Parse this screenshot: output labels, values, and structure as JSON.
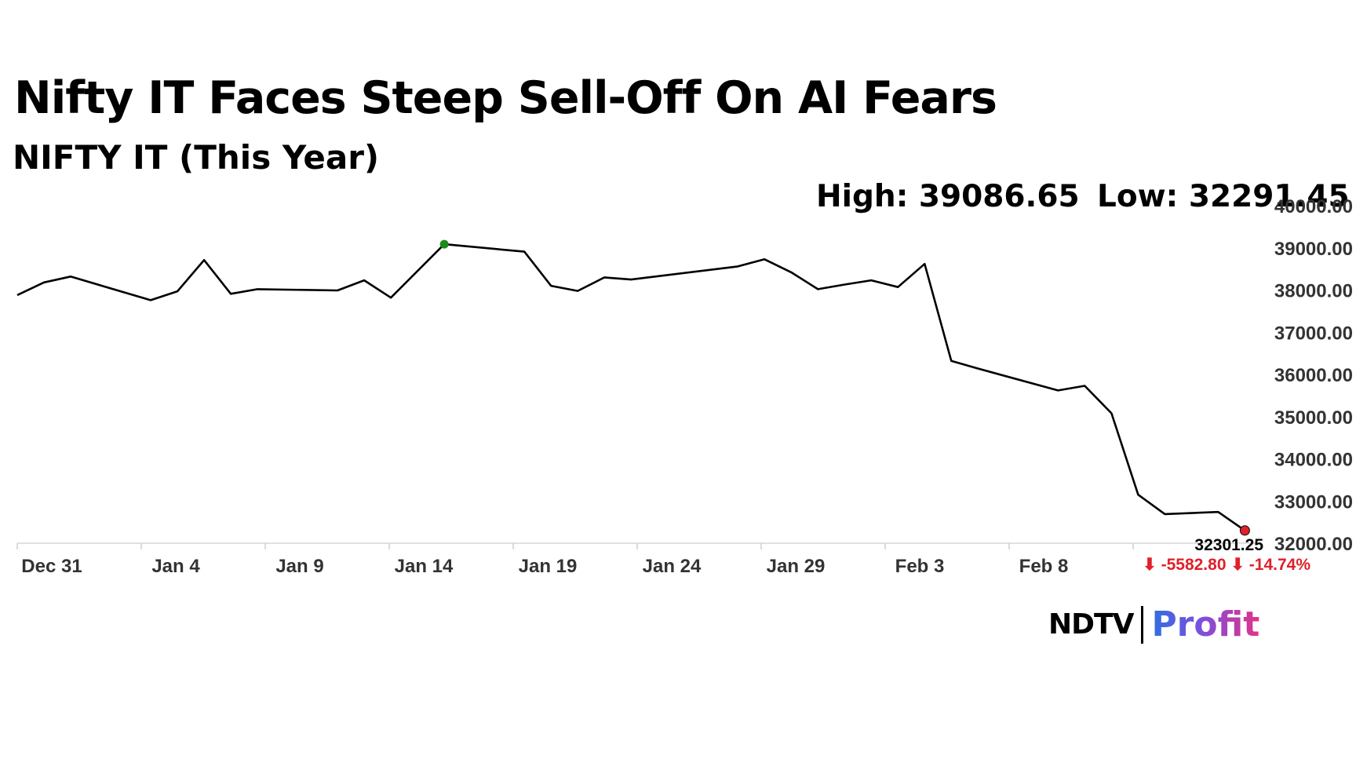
{
  "chart_data": {
    "type": "line",
    "title": "Nifty IT Faces Steep Sell-Off On AI Fears",
    "subtitle": "NIFTY IT (This Year)",
    "high_label": "High: 39086.65",
    "low_label": "Low: 32291.45",
    "ylim": [
      32000,
      40000
    ],
    "y_ticks": [
      "40000.00",
      "39000.00",
      "38000.00",
      "37000.00",
      "36000.00",
      "35000.00",
      "34000.00",
      "33000.00",
      "32000.00"
    ],
    "x_ticks": [
      "Dec 31",
      "Jan 4",
      "Jan 9",
      "Jan 14",
      "Jan 19",
      "Jan 24",
      "Jan 29",
      "Feb 3",
      "Feb 8"
    ],
    "x_tick_days": [
      0,
      5,
      10,
      15,
      20,
      25,
      30,
      35,
      40
    ],
    "x_range": [
      -1.4,
      45
    ],
    "grid": false,
    "series": [
      {
        "name": "NIFTY IT",
        "color": "#000000",
        "x": [
          -1.4,
          -0.4,
          0.6,
          3.6,
          4.6,
          5.6,
          6.6,
          7.6,
          10.6,
          11.6,
          12.6,
          14.6,
          17.6,
          18.6,
          19.6,
          20.6,
          21.6,
          25.6,
          26.6,
          27.6,
          28.6,
          29.6,
          30.6,
          31.6,
          32.6,
          33.6,
          34.6,
          37.6,
          38.6,
          39.6,
          40.6,
          41.6,
          43.6,
          44.6
        ],
        "values": [
          37880,
          38180,
          38320,
          37760,
          37970,
          38710,
          37910,
          38020,
          37990,
          38230,
          37820,
          39086.65,
          38910,
          38100,
          37980,
          38300,
          38250,
          38560,
          38730,
          38420,
          38020,
          38130,
          38230,
          38070,
          38620,
          36320,
          36140,
          35620,
          35730,
          35080,
          33150,
          32690,
          32740,
          32301.25
        ]
      }
    ],
    "high_point_color": "#1a8a1a",
    "low_point_color": "#e0202a",
    "last_value_label": "32301.25",
    "change_label": "⬇ -5582.80 ⬇ -14.74%",
    "change_color": "#e0202a"
  },
  "brand": {
    "ndtv": "NDTV",
    "profit": "Profit"
  }
}
